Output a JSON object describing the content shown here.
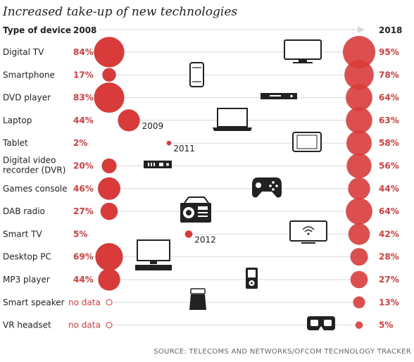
{
  "chart_data": {
    "type": "scatter",
    "title": "Increased take-up of new technologies",
    "column_header": "Type of device",
    "start_year": "2008",
    "end_year": "2018",
    "source": "SOURCE: TELECOMS AND NETWORKS/OFCOM TECHNOLOGY TRACKER",
    "no_data_label": "no data",
    "accent_color": "#d93b3b",
    "rows": [
      {
        "device": [
          "Digital TV"
        ],
        "start_value": 84,
        "start_label": "84%",
        "end_value": 95,
        "end_label": "95%",
        "icon": "tv-icon"
      },
      {
        "device": [
          "Smartphone"
        ],
        "start_value": 17,
        "start_label": "17%",
        "end_value": 78,
        "end_label": "78%",
        "icon": "smartphone-icon"
      },
      {
        "device": [
          "DVD player"
        ],
        "start_value": 83,
        "start_label": "83%",
        "end_value": 64,
        "end_label": "64%",
        "icon": "dvd-player-icon"
      },
      {
        "device": [
          "Laptop"
        ],
        "start_value": 44,
        "start_label": "44%",
        "start_year": "2009",
        "end_value": 63,
        "end_label": "63%",
        "icon": "laptop-icon"
      },
      {
        "device": [
          "Tablet"
        ],
        "start_value": 2,
        "start_label": "2%",
        "start_year": "2011",
        "end_value": 58,
        "end_label": "58%",
        "icon": "tablet-icon"
      },
      {
        "device": [
          "Digital video",
          "recorder (DVR)"
        ],
        "start_value": 20,
        "start_label": "20%",
        "end_value": 56,
        "end_label": "56%",
        "icon": "dvr-icon"
      },
      {
        "device": [
          "Games console"
        ],
        "start_value": 46,
        "start_label": "46%",
        "end_value": 44,
        "end_label": "44%",
        "icon": "gamepad-icon"
      },
      {
        "device": [
          "DAB radio"
        ],
        "start_value": 27,
        "start_label": "27%",
        "end_value": 64,
        "end_label": "64%",
        "icon": "radio-icon"
      },
      {
        "device": [
          "Smart TV"
        ],
        "start_value": 5,
        "start_label": "5%",
        "start_year": "2012",
        "end_value": 42,
        "end_label": "42%",
        "icon": "smart-tv-icon"
      },
      {
        "device": [
          "Desktop PC"
        ],
        "start_value": 69,
        "start_label": "69%",
        "end_value": 28,
        "end_label": "28%",
        "icon": "desktop-pc-icon"
      },
      {
        "device": [
          "MP3 player"
        ],
        "start_value": 44,
        "start_label": "44%",
        "end_value": 27,
        "end_label": "27%",
        "icon": "mp3-player-icon"
      },
      {
        "device": [
          "Smart speaker"
        ],
        "start_value": null,
        "start_label": "no data",
        "end_value": 13,
        "end_label": "13%",
        "icon": "smart-speaker-icon"
      },
      {
        "device": [
          "VR headset"
        ],
        "start_value": null,
        "start_label": "no data",
        "end_value": 5,
        "end_label": "5%",
        "icon": "vr-headset-icon"
      }
    ]
  }
}
